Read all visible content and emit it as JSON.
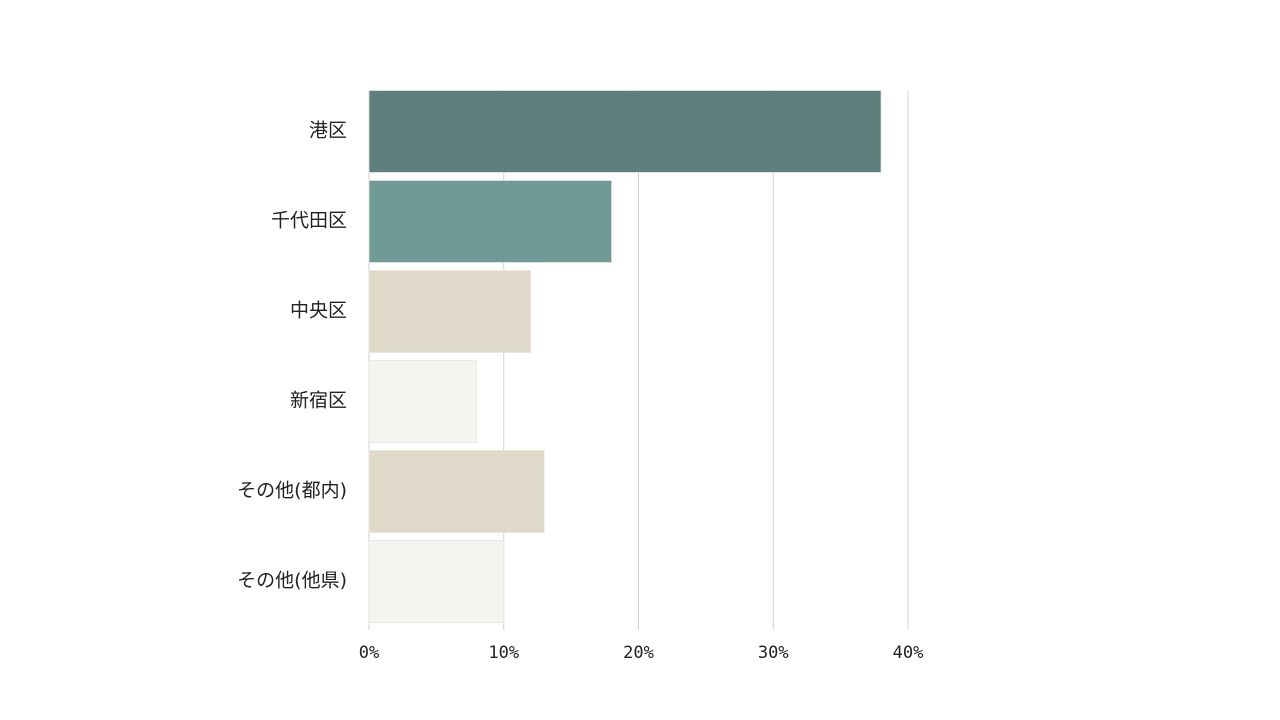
{
  "chart_data": {
    "type": "hbar",
    "categories": [
      "港区",
      "千代田区",
      "中央区",
      "新宿区",
      "その他(都内)",
      "その他(他県)"
    ],
    "values": [
      38,
      18,
      12,
      8,
      13,
      10
    ],
    "colors": [
      "#5f7f7c",
      "#6f9a95",
      "#dfd9c9",
      "#f4f4f0",
      "#dfd9c9",
      "#f4f4f0"
    ],
    "xlim": [
      0,
      40
    ],
    "xticks": [
      {
        "value": 0,
        "label": "0%"
      },
      {
        "value": 10,
        "label": "10%"
      },
      {
        "value": 20,
        "label": "20%"
      },
      {
        "value": 30,
        "label": "30%"
      },
      {
        "value": 40,
        "label": "40%"
      }
    ],
    "grid": true
  }
}
